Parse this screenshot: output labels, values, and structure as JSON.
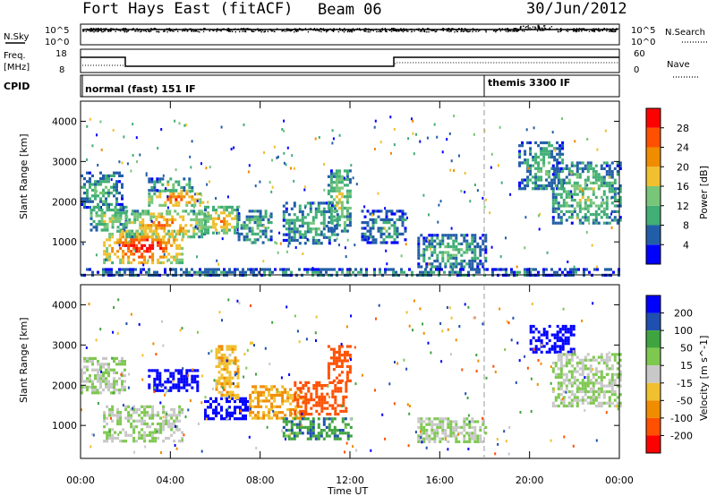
{
  "title": {
    "site": "Fort Hays East (fitACF)",
    "beam": "Beam 06",
    "date": "30/Jun/2012"
  },
  "noise_panel": {
    "left_label": "N.Sky",
    "right_label": "N.Search",
    "left_ticks": [
      "10^5",
      "10^0"
    ],
    "right_ticks": [
      "10^5",
      "10^0"
    ]
  },
  "freq_panel": {
    "left_label_1": "Freq.",
    "left_label_2": "[MHz]",
    "right_label": "Nave",
    "left_ticks": [
      "18",
      "8"
    ],
    "right_ticks": [
      "60",
      "0"
    ]
  },
  "cpid": {
    "label": "CPID",
    "segments": [
      {
        "name": "normal (fast) 151 IF",
        "start_hour": 0
      },
      {
        "name": "themis 3300 IF",
        "start_hour": 18
      }
    ]
  },
  "colors": {
    "power": [
      "#0000ff",
      "#225ea8",
      "#41ae76",
      "#78c679",
      "#f0c030",
      "#f08c00",
      "#ff5000",
      "#ff0000"
    ],
    "velocity": [
      "#0000ff",
      "#1f4fb0",
      "#3fa43f",
      "#7ec850",
      "#c8c8c8",
      "#f0c030",
      "#f08c00",
      "#ff5000",
      "#ff0000"
    ]
  },
  "chart_data": [
    {
      "type": "heatmap",
      "name": "power",
      "xlabel": "",
      "ylabel": "Slant Range [km]",
      "yticks": [
        "1000",
        "2000",
        "3000",
        "4000"
      ],
      "colorbar_label": "Power [dB]",
      "colorbar_ticks": [
        "28",
        "24",
        "20",
        "16",
        "12",
        "8",
        "4"
      ],
      "clim": [
        0,
        30
      ],
      "ylim": [
        180,
        4500
      ],
      "xlim": [
        0,
        24
      ],
      "patches": [
        {
          "t0": 0.0,
          "t1": 1.8,
          "r0": 1850,
          "r1": 2750,
          "v": 10
        },
        {
          "t0": 0.3,
          "t1": 2.0,
          "r0": 1300,
          "r1": 1900,
          "v": 14
        },
        {
          "t0": 1.0,
          "t1": 4.5,
          "r0": 500,
          "r1": 1300,
          "v": 26
        },
        {
          "t0": 2.0,
          "t1": 5.5,
          "r0": 1100,
          "r1": 1800,
          "v": 20
        },
        {
          "t0": 3.0,
          "t1": 5.5,
          "r0": 1900,
          "r1": 2300,
          "v": 22
        },
        {
          "t0": 3.0,
          "t1": 5.0,
          "r0": 2300,
          "r1": 2600,
          "v": 12
        },
        {
          "t0": 5.5,
          "t1": 7.0,
          "r0": 1200,
          "r1": 1900,
          "v": 18
        },
        {
          "t0": 7.0,
          "t1": 8.5,
          "r0": 1000,
          "r1": 1800,
          "v": 10
        },
        {
          "t0": 9.0,
          "t1": 11.5,
          "r0": 1000,
          "r1": 2000,
          "v": 10
        },
        {
          "t0": 11.0,
          "t1": 12.0,
          "r0": 1300,
          "r1": 2800,
          "v": 14
        },
        {
          "t0": 12.5,
          "t1": 14.5,
          "r0": 1000,
          "r1": 1800,
          "v": 8
        },
        {
          "t0": 15.0,
          "t1": 18.0,
          "r0": 400,
          "r1": 1200,
          "v": 10
        },
        {
          "t0": 19.5,
          "t1": 21.5,
          "r0": 2300,
          "r1": 3500,
          "v": 10
        },
        {
          "t0": 21.0,
          "t1": 24.0,
          "r0": 1500,
          "r1": 3000,
          "v": 12
        },
        {
          "t0": 0.0,
          "t1": 24.0,
          "r0": 180,
          "r1": 350,
          "v": 8
        }
      ]
    },
    {
      "type": "heatmap",
      "name": "velocity",
      "xlabel": "Time UT",
      "ylabel": "Slant Range [km]",
      "yticks": [
        "1000",
        "2000",
        "3000",
        "4000"
      ],
      "xticks": [
        "00:00",
        "04:00",
        "08:00",
        "12:00",
        "16:00",
        "20:00",
        "00:00"
      ],
      "colorbar_label": "Velocity [m s^-1]",
      "colorbar_ticks": [
        "200",
        "100",
        "50",
        "15",
        "-15",
        "-50",
        "-100",
        "-200"
      ],
      "clim": [
        -250,
        250
      ],
      "ylim": [
        180,
        4500
      ],
      "xlim": [
        0,
        24
      ],
      "patches": [
        {
          "t0": 0.0,
          "t1": 2.0,
          "r0": 1800,
          "r1": 2700,
          "v": 0
        },
        {
          "t0": 1.0,
          "t1": 4.5,
          "r0": 600,
          "r1": 1500,
          "v": 0
        },
        {
          "t0": 3.0,
          "t1": 5.2,
          "r0": 1900,
          "r1": 2400,
          "v": 220
        },
        {
          "t0": 5.5,
          "t1": 7.5,
          "r0": 1200,
          "r1": 1700,
          "v": 220
        },
        {
          "t0": 6.0,
          "t1": 7.0,
          "r0": 1700,
          "r1": 3000,
          "v": -60
        },
        {
          "t0": 7.5,
          "t1": 10.0,
          "r0": 1200,
          "r1": 2000,
          "v": -80
        },
        {
          "t0": 9.5,
          "t1": 11.8,
          "r0": 1300,
          "r1": 2100,
          "v": -220
        },
        {
          "t0": 11.0,
          "t1": 12.0,
          "r0": 2100,
          "r1": 3000,
          "v": -180
        },
        {
          "t0": 9.0,
          "t1": 12.0,
          "r0": 700,
          "r1": 1200,
          "v": 60
        },
        {
          "t0": 15.0,
          "t1": 18.0,
          "r0": 600,
          "r1": 1200,
          "v": 0
        },
        {
          "t0": 20.0,
          "t1": 22.0,
          "r0": 2800,
          "r1": 3500,
          "v": 220
        },
        {
          "t0": 21.0,
          "t1": 24.0,
          "r0": 1500,
          "r1": 2800,
          "v": 0
        }
      ]
    }
  ]
}
